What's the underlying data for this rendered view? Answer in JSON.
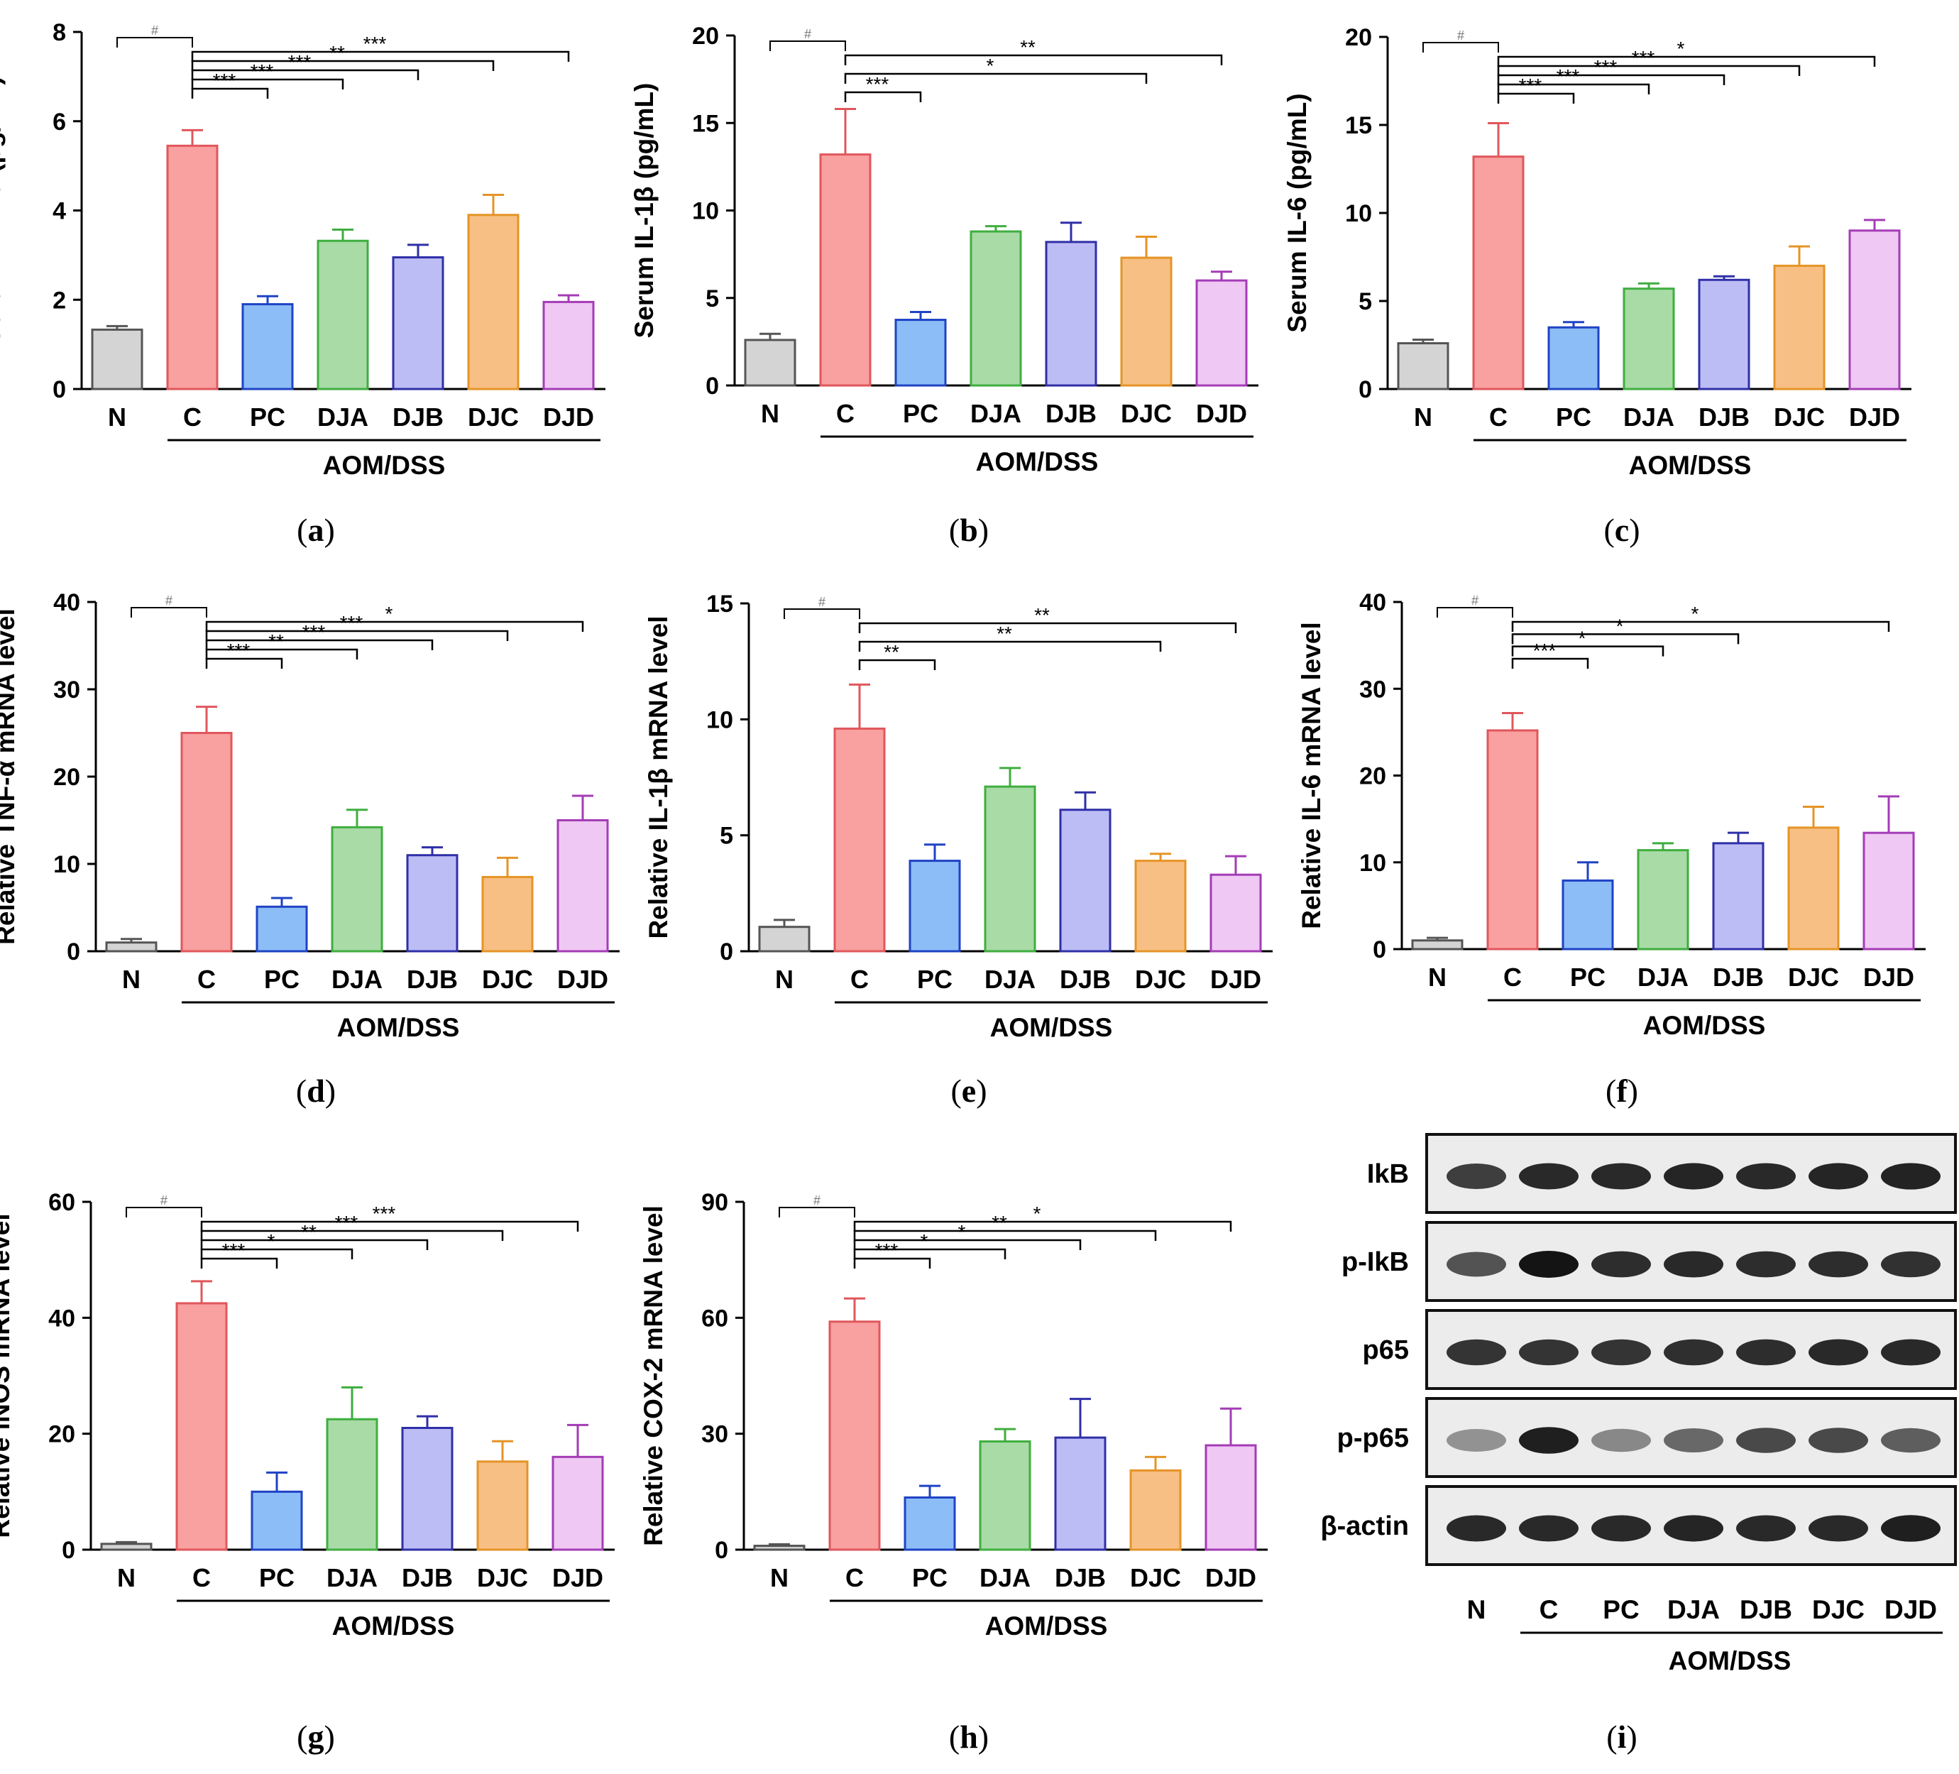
{
  "colors": {
    "N": "#d4d4d4",
    "C": "#f9a0a0",
    "PC": "#8cbdf7",
    "DJA": "#a8dba6",
    "DJB": "#bdbdf5",
    "DJC": "#f8bf84",
    "DJD": "#efc8f4",
    "N_edge": "#555555",
    "C_edge": "#e0575c",
    "PC_edge": "#1f43c4",
    "DJA_edge": "#3fae3f",
    "DJB_edge": "#2f2fa8",
    "DJC_edge": "#e59427",
    "DJD_edge": "#a43cb6"
  },
  "group_label": "AOM/DSS",
  "chart_data": [
    {
      "id": "a",
      "type": "bar",
      "caption": "a",
      "ylabel": "Serum TNF-α  (pg/mL)",
      "ylim": [
        0,
        8
      ],
      "yticks": [
        0,
        2,
        4,
        6,
        8
      ],
      "categories": [
        "N",
        "C",
        "PC",
        "DJA",
        "DJB",
        "DJC",
        "DJD"
      ],
      "values": [
        1.33,
        5.45,
        1.9,
        3.32,
        2.95,
        3.9,
        1.95
      ],
      "errors": [
        0.08,
        0.35,
        0.18,
        0.25,
        0.28,
        0.45,
        0.15
      ],
      "significance": [
        {
          "from": "N",
          "to": "C",
          "label": "#"
        },
        {
          "from": "C",
          "to": "PC",
          "label": "***"
        },
        {
          "from": "C",
          "to": "DJA",
          "label": "***"
        },
        {
          "from": "C",
          "to": "DJB",
          "label": "***"
        },
        {
          "from": "C",
          "to": "DJC",
          "label": "**"
        },
        {
          "from": "C",
          "to": "DJD",
          "label": "***"
        }
      ]
    },
    {
      "id": "b",
      "type": "bar",
      "caption": "b",
      "ylabel": "Serum IL-1β  (pg/mL)",
      "ylim": [
        0,
        20
      ],
      "yticks": [
        0,
        5,
        10,
        15,
        20
      ],
      "categories": [
        "N",
        "C",
        "PC",
        "DJA",
        "DJB",
        "DJC",
        "DJD"
      ],
      "values": [
        2.6,
        13.2,
        3.75,
        8.8,
        8.2,
        7.3,
        6.0
      ],
      "errors": [
        0.35,
        2.6,
        0.45,
        0.3,
        1.1,
        1.2,
        0.5
      ],
      "significance": [
        {
          "from": "N",
          "to": "C",
          "label": "#"
        },
        {
          "from": "C",
          "to": "PC",
          "label": "***"
        },
        {
          "from": "C",
          "to": "DJC",
          "label": "*"
        },
        {
          "from": "C",
          "to": "DJD",
          "label": "**"
        }
      ]
    },
    {
      "id": "c",
      "type": "bar",
      "caption": "c",
      "ylabel": "Serum IL-6  (pg/mL)",
      "ylim": [
        0,
        20
      ],
      "yticks": [
        0,
        5,
        10,
        15,
        20
      ],
      "categories": [
        "N",
        "C",
        "PC",
        "DJA",
        "DJB",
        "DJC",
        "DJD"
      ],
      "values": [
        2.6,
        13.2,
        3.5,
        5.7,
        6.2,
        7.0,
        9.0
      ],
      "errors": [
        0.2,
        1.9,
        0.3,
        0.3,
        0.2,
        1.1,
        0.6
      ],
      "significance": [
        {
          "from": "N",
          "to": "C",
          "label": "#"
        },
        {
          "from": "C",
          "to": "PC",
          "label": "***"
        },
        {
          "from": "C",
          "to": "DJA",
          "label": "***"
        },
        {
          "from": "C",
          "to": "DJB",
          "label": "***"
        },
        {
          "from": "C",
          "to": "DJC",
          "label": "***"
        },
        {
          "from": "C",
          "to": "DJD",
          "label": "*"
        }
      ]
    },
    {
      "id": "d",
      "type": "bar",
      "caption": "d",
      "ylabel": "Relative TNF-α  mRNA level",
      "ylim": [
        0,
        40
      ],
      "yticks": [
        0,
        10,
        20,
        30,
        40
      ],
      "categories": [
        "N",
        "C",
        "PC",
        "DJA",
        "DJB",
        "DJC",
        "DJD"
      ],
      "values": [
        1.0,
        25.0,
        5.1,
        14.2,
        11.0,
        8.5,
        15.0
      ],
      "errors": [
        0.4,
        3.0,
        1.0,
        2.0,
        0.9,
        2.2,
        2.8
      ],
      "significance": [
        {
          "from": "N",
          "to": "C",
          "label": "#"
        },
        {
          "from": "C",
          "to": "PC",
          "label": "***"
        },
        {
          "from": "C",
          "to": "DJA",
          "label": "**"
        },
        {
          "from": "C",
          "to": "DJB",
          "label": "***"
        },
        {
          "from": "C",
          "to": "DJC",
          "label": "***"
        },
        {
          "from": "C",
          "to": "DJD",
          "label": "*"
        }
      ]
    },
    {
      "id": "e",
      "type": "bar",
      "caption": "e",
      "ylabel": "Relative IL-1β  mRNA level",
      "ylim": [
        0,
        15
      ],
      "yticks": [
        0,
        5,
        10,
        15
      ],
      "categories": [
        "N",
        "C",
        "PC",
        "DJA",
        "DJB",
        "DJC",
        "DJD"
      ],
      "values": [
        1.05,
        9.6,
        3.9,
        7.1,
        6.1,
        3.9,
        3.3
      ],
      "errors": [
        0.3,
        1.9,
        0.7,
        0.8,
        0.75,
        0.3,
        0.8
      ],
      "significance": [
        {
          "from": "N",
          "to": "C",
          "label": "#"
        },
        {
          "from": "C",
          "to": "PC",
          "label": "**"
        },
        {
          "from": "C",
          "to": "DJC",
          "label": "**"
        },
        {
          "from": "C",
          "to": "DJD",
          "label": "**"
        }
      ]
    },
    {
      "id": "f",
      "type": "bar",
      "caption": "f",
      "ylabel": "Relative IL-6 mRNA level",
      "ylim": [
        0,
        40
      ],
      "yticks": [
        0,
        10,
        20,
        30,
        40
      ],
      "categories": [
        "N",
        "C",
        "PC",
        "DJA",
        "DJB",
        "DJC",
        "DJD"
      ],
      "values": [
        1.0,
        25.2,
        7.9,
        11.4,
        12.2,
        14.0,
        13.4
      ],
      "errors": [
        0.3,
        2.0,
        2.1,
        0.8,
        1.2,
        2.4,
        4.2
      ],
      "significance": [
        {
          "from": "N",
          "to": "C",
          "label": "#"
        },
        {
          "from": "C",
          "to": "PC",
          "label": "***"
        },
        {
          "from": "C",
          "to": "DJA",
          "label": "*"
        },
        {
          "from": "C",
          "to": "DJB",
          "label": "*"
        },
        {
          "from": "C",
          "to": "DJD",
          "label": "*"
        }
      ]
    },
    {
      "id": "g",
      "type": "bar",
      "caption": "g",
      "ylabel": "Relative iNOS mRNA level",
      "ylim": [
        0,
        60
      ],
      "yticks": [
        0,
        20,
        40,
        60
      ],
      "categories": [
        "N",
        "C",
        "PC",
        "DJA",
        "DJB",
        "DJC",
        "DJD"
      ],
      "values": [
        1.0,
        42.5,
        10.0,
        22.5,
        21.0,
        15.2,
        16.0
      ],
      "errors": [
        0.3,
        3.8,
        3.3,
        5.5,
        2.0,
        3.5,
        5.5
      ],
      "significance": [
        {
          "from": "N",
          "to": "C",
          "label": "#"
        },
        {
          "from": "C",
          "to": "PC",
          "label": "***"
        },
        {
          "from": "C",
          "to": "DJA",
          "label": "*"
        },
        {
          "from": "C",
          "to": "DJB",
          "label": "**"
        },
        {
          "from": "C",
          "to": "DJC",
          "label": "***"
        },
        {
          "from": "C",
          "to": "DJD",
          "label": "***"
        }
      ]
    },
    {
      "id": "h",
      "type": "bar",
      "caption": "h",
      "ylabel": "Relative COX-2 mRNA level",
      "ylim": [
        0,
        90
      ],
      "yticks": [
        0,
        30,
        60,
        90
      ],
      "categories": [
        "N",
        "C",
        "PC",
        "DJA",
        "DJB",
        "DJC",
        "DJD"
      ],
      "values": [
        1.0,
        59.0,
        13.5,
        28.0,
        29.0,
        20.5,
        27.0
      ],
      "errors": [
        0.4,
        6.0,
        3.0,
        3.2,
        10.0,
        3.5,
        9.5
      ],
      "significance": [
        {
          "from": "N",
          "to": "C",
          "label": "#"
        },
        {
          "from": "C",
          "to": "PC",
          "label": "***"
        },
        {
          "from": "C",
          "to": "DJA",
          "label": "*"
        },
        {
          "from": "C",
          "to": "DJB",
          "label": "*"
        },
        {
          "from": "C",
          "to": "DJC",
          "label": "**"
        },
        {
          "from": "C",
          "to": "DJD",
          "label": "*"
        }
      ]
    }
  ],
  "blot": {
    "caption": "i",
    "lanes": [
      "N",
      "C",
      "PC",
      "DJA",
      "DJB",
      "DJC",
      "DJD"
    ],
    "rows": [
      {
        "label": "IkB",
        "intensity": [
          0.8,
          0.9,
          0.9,
          0.92,
          0.9,
          0.92,
          0.93
        ]
      },
      {
        "label": "p-IkB",
        "intensity": [
          0.7,
          1.0,
          0.88,
          0.9,
          0.88,
          0.88,
          0.86
        ]
      },
      {
        "label": "p65",
        "intensity": [
          0.85,
          0.85,
          0.85,
          0.87,
          0.88,
          0.9,
          0.9
        ]
      },
      {
        "label": "p-p65",
        "intensity": [
          0.4,
          0.95,
          0.45,
          0.6,
          0.75,
          0.75,
          0.65
        ]
      },
      {
        "label": "β-actin",
        "intensity": [
          0.9,
          0.9,
          0.9,
          0.92,
          0.9,
          0.9,
          0.95
        ]
      }
    ]
  }
}
